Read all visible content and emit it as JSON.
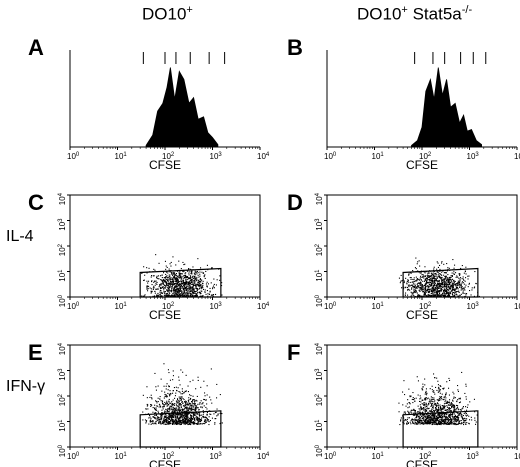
{
  "columns": [
    {
      "base": "DO10",
      "sup": "+",
      "suffix": "",
      "suffix_sup": ""
    },
    {
      "base": "DO10",
      "sup": "+",
      "suffix": " Stat5a",
      "suffix_sup": "-/-"
    }
  ],
  "row_labels": [
    "IL-4",
    "IFN-γ"
  ],
  "axis": {
    "xlabel": "CFSE",
    "decades": [
      "0",
      "1",
      "2",
      "3",
      "4"
    ]
  },
  "chart_data": [
    {
      "panel": "A",
      "type": "area",
      "genotype": "DO10+",
      "xlabel": "CFSE",
      "xscale": "log",
      "xlim": [
        1,
        10000
      ],
      "x": [
        40,
        55,
        70,
        90,
        110,
        130,
        160,
        200,
        250,
        320,
        400,
        500,
        650,
        800,
        1000,
        1300
      ],
      "y": [
        0.02,
        0.15,
        0.45,
        0.55,
        0.75,
        1.0,
        0.6,
        0.95,
        0.85,
        0.55,
        0.62,
        0.35,
        0.38,
        0.18,
        0.12,
        0.03
      ],
      "division_markers": [
        35,
        100,
        170,
        340,
        850,
        1800
      ]
    },
    {
      "panel": "B",
      "type": "area",
      "genotype": "DO10+ Stat5a-/-",
      "xlabel": "CFSE",
      "xscale": "log",
      "xlim": [
        1,
        10000
      ],
      "x": [
        60,
        80,
        100,
        120,
        150,
        180,
        220,
        270,
        330,
        400,
        500,
        620,
        750,
        900,
        1100,
        1400,
        1800
      ],
      "y": [
        0.02,
        0.08,
        0.25,
        0.7,
        0.85,
        0.6,
        1.0,
        0.65,
        0.85,
        0.5,
        0.55,
        0.3,
        0.4,
        0.2,
        0.22,
        0.08,
        0.03
      ],
      "division_markers": [
        70,
        170,
        300,
        650,
        1200,
        2200
      ]
    },
    {
      "panel": "C",
      "type": "scatter",
      "genotype": "DO10+",
      "xlabel": "CFSE",
      "ylabel": "IL-4",
      "xscale": "log",
      "yscale": "log",
      "xlim": [
        1,
        10000
      ],
      "ylim": [
        1,
        10000
      ],
      "gate": {
        "x": [
          30,
          1500
        ],
        "y": [
          1,
          10
        ]
      }
    },
    {
      "panel": "D",
      "type": "scatter",
      "genotype": "DO10+ Stat5a-/-",
      "xlabel": "CFSE",
      "ylabel": "IL-4",
      "xscale": "log",
      "yscale": "log",
      "xlim": [
        1,
        10000
      ],
      "ylim": [
        1,
        10000
      ],
      "gate": {
        "x": [
          40,
          1500
        ],
        "y": [
          1,
          10
        ]
      }
    },
    {
      "panel": "E",
      "type": "scatter",
      "genotype": "DO10+",
      "xlabel": "CFSE",
      "ylabel": "IFN-γ",
      "xscale": "log",
      "yscale": "log",
      "xlim": [
        1,
        10000
      ],
      "ylim": [
        1,
        10000
      ],
      "gate": {
        "x": [
          30,
          1500
        ],
        "y": [
          1,
          20
        ]
      }
    },
    {
      "panel": "F",
      "type": "scatter",
      "genotype": "DO10+ Stat5a-/-",
      "xlabel": "CFSE",
      "ylabel": "IFN-γ",
      "xscale": "log",
      "yscale": "log",
      "xlim": [
        1,
        10000
      ],
      "ylim": [
        1,
        10000
      ],
      "gate": {
        "x": [
          40,
          1500
        ],
        "y": [
          1,
          20
        ]
      }
    }
  ]
}
